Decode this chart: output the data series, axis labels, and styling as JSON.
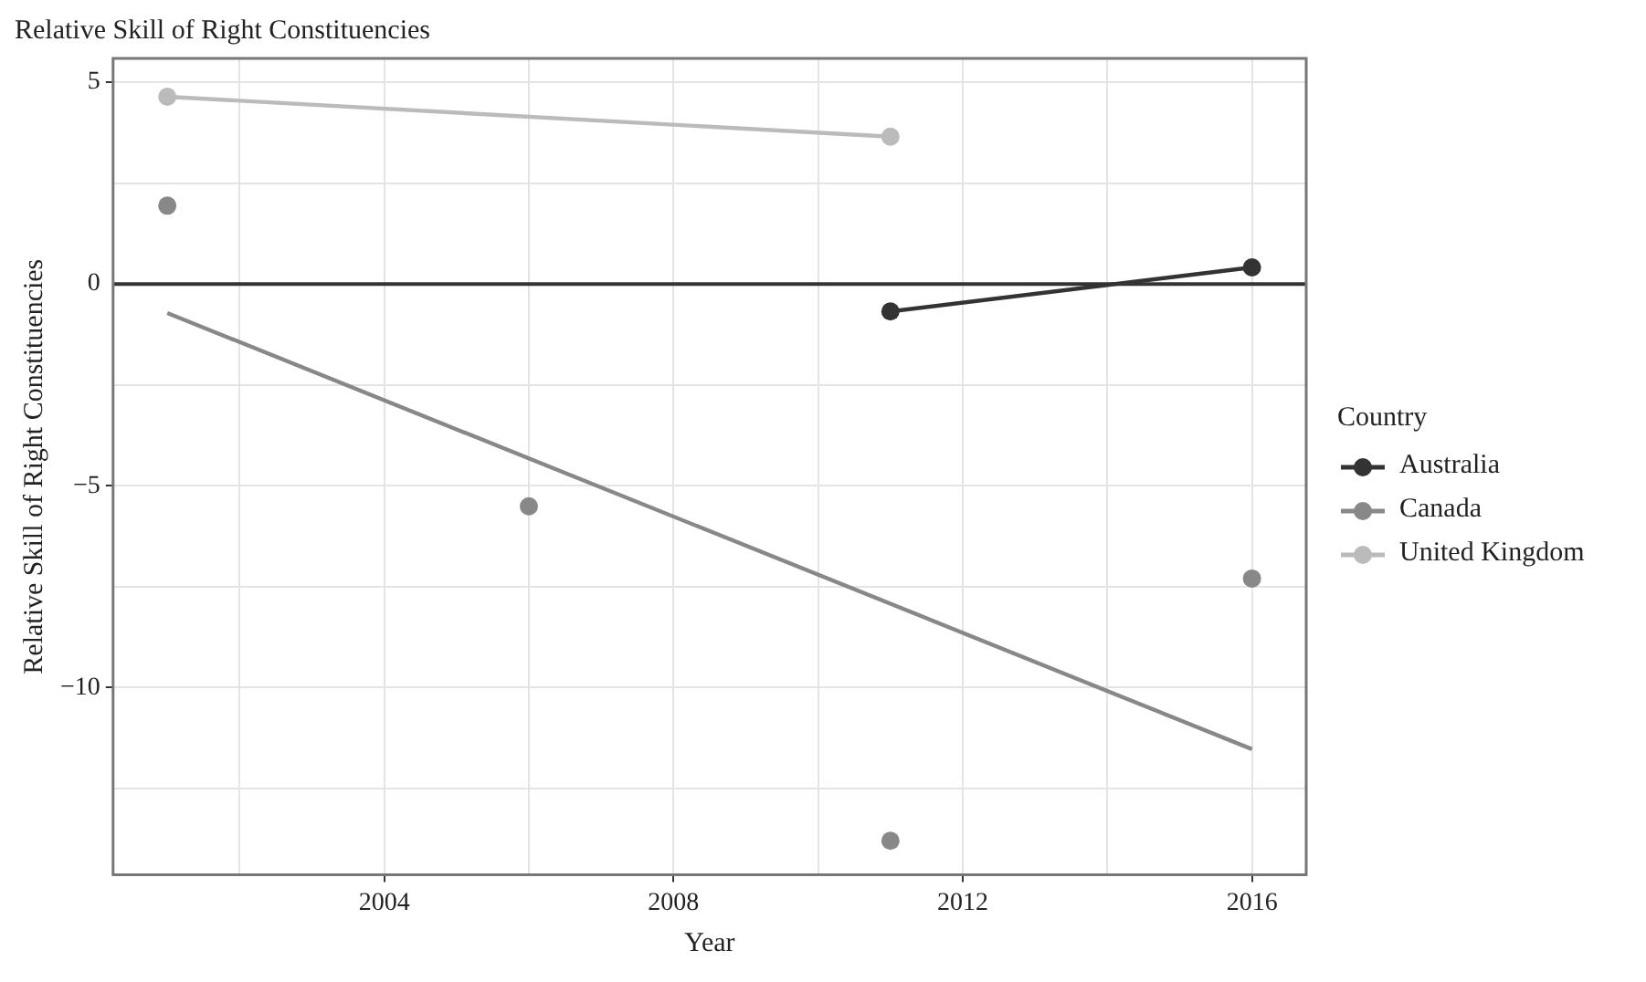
{
  "chart_data": {
    "type": "line",
    "title": "Relative Skill of Right Constituencies",
    "xlabel": "Year",
    "ylabel": "Relative Skill of Right Constituencies",
    "legend_title": "Country",
    "xlim": [
      2000.25,
      2016.75
    ],
    "xticks": [
      {
        "value": 2002,
        "label": null
      },
      2004,
      {
        "value": 2006,
        "label": null
      },
      2008,
      {
        "value": 2010,
        "label": null
      },
      2012,
      {
        "value": 2014,
        "label": null
      },
      2016
    ],
    "ylim": [
      -14.64,
      5.59
    ],
    "yticks": [
      {
        "value": -12.5,
        "label": null
      },
      {
        "value": -10,
        "label": "−10"
      },
      {
        "value": -7.5,
        "label": null
      },
      {
        "value": -5,
        "label": "−5"
      },
      {
        "value": -2.5,
        "label": null
      },
      0,
      {
        "value": 2.5,
        "label": null
      },
      5
    ],
    "series": [
      {
        "name": "Australia",
        "color": "#333333",
        "x": [
          2011,
          2016
        ],
        "values": [
          -0.68,
          0.41
        ]
      },
      {
        "name": "Canada",
        "type": "scatter",
        "color": "#888888",
        "x": [
          2001,
          2006,
          2011,
          2016
        ],
        "values": [
          1.94,
          -5.51,
          -13.8,
          -7.3
        ]
      },
      {
        "type": "line",
        "color": "#888888",
        "marker": "none",
        "x": [
          2001,
          2016
        ],
        "values": [
          -0.72,
          -11.53
        ]
      },
      {
        "name": "United Kingdom",
        "color": "#bbbbbb",
        "x": [
          2001,
          2011
        ],
        "values": [
          4.64,
          3.65
        ]
      }
    ],
    "ref_lines": [
      {
        "axis": "y",
        "value": 0,
        "color": "#333333"
      }
    ],
    "grid": true,
    "legend": "right",
    "marker": "circle",
    "line_style": "solid"
  }
}
